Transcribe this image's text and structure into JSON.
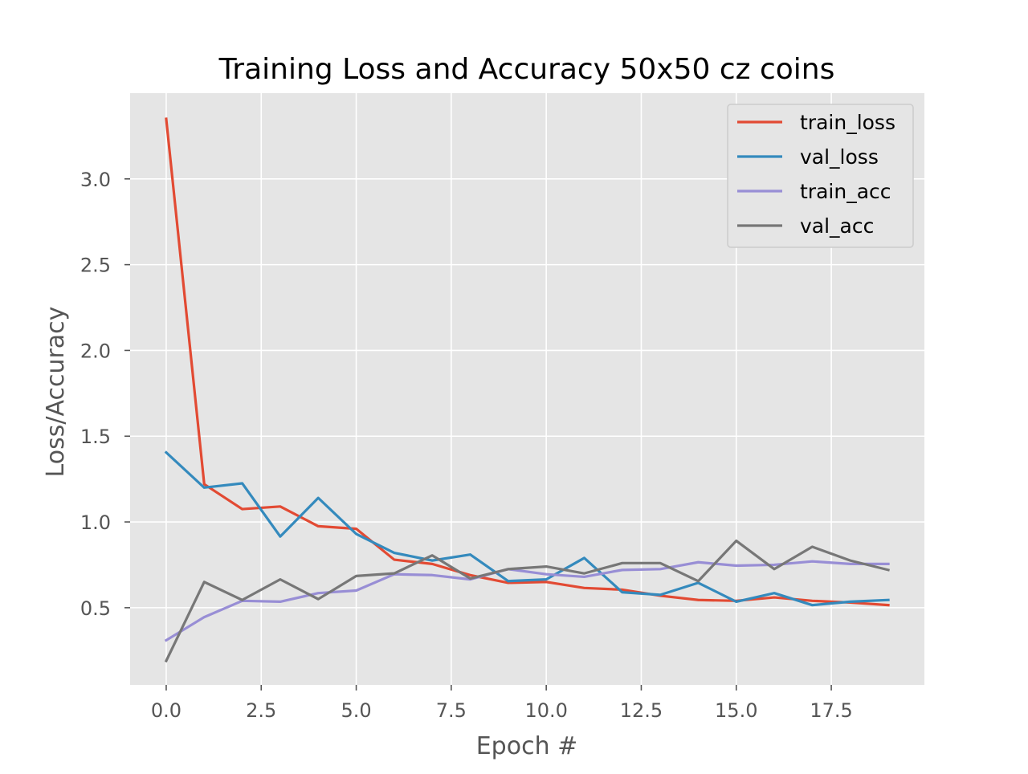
{
  "chart_data": {
    "type": "line",
    "title": "Training Loss and Accuracy 50x50 cz coins",
    "xlabel": "Epoch #",
    "ylabel": "Loss/Accuracy",
    "xlim": [
      -0.95,
      19.95
    ],
    "ylim": [
      0.05,
      3.5
    ],
    "xticks": [
      0,
      2.5,
      5,
      7.5,
      10,
      12.5,
      15,
      17.5
    ],
    "xtick_labels": [
      "0.0",
      "2.5",
      "5.0",
      "7.5",
      "10.0",
      "12.5",
      "15.0",
      "17.5"
    ],
    "yticks": [
      0.5,
      1.0,
      1.5,
      2.0,
      2.5,
      3.0
    ],
    "ytick_labels": [
      "0.5",
      "1.0",
      "1.5",
      "2.0",
      "2.5",
      "3.0"
    ],
    "grid": true,
    "legend_position": "top-right",
    "x": [
      0,
      1,
      2,
      3,
      4,
      5,
      6,
      7,
      8,
      9,
      10,
      11,
      12,
      13,
      14,
      15,
      16,
      17,
      18,
      19
    ],
    "series": [
      {
        "name": "train_loss",
        "color": "#E24A33",
        "values": [
          3.35,
          1.22,
          1.075,
          1.09,
          0.975,
          0.96,
          0.78,
          0.755,
          0.69,
          0.645,
          0.65,
          0.615,
          0.605,
          0.57,
          0.545,
          0.54,
          0.56,
          0.54,
          0.53,
          0.515
        ]
      },
      {
        "name": "val_loss",
        "color": "#348ABD",
        "values": [
          1.405,
          1.2,
          1.225,
          0.915,
          1.14,
          0.93,
          0.82,
          0.775,
          0.81,
          0.655,
          0.665,
          0.79,
          0.59,
          0.575,
          0.645,
          0.535,
          0.585,
          0.515,
          0.535,
          0.545
        ]
      },
      {
        "name": "train_acc",
        "color": "#988ED5",
        "values": [
          0.31,
          0.445,
          0.54,
          0.535,
          0.585,
          0.6,
          0.695,
          0.69,
          0.665,
          0.725,
          0.695,
          0.68,
          0.72,
          0.725,
          0.765,
          0.745,
          0.75,
          0.77,
          0.755,
          0.755
        ]
      },
      {
        "name": "val_acc",
        "color": "#777777",
        "values": [
          0.19,
          0.65,
          0.545,
          0.665,
          0.55,
          0.685,
          0.7,
          0.805,
          0.67,
          0.725,
          0.74,
          0.7,
          0.76,
          0.76,
          0.655,
          0.89,
          0.725,
          0.855,
          0.775,
          0.72
        ]
      }
    ]
  }
}
